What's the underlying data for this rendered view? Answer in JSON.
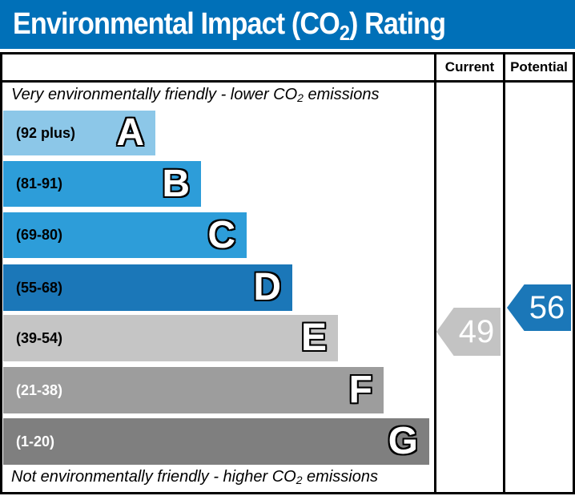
{
  "title": {
    "prefix": "Environmental Impact (CO",
    "subscript": "2",
    "suffix": ") Rating"
  },
  "header": {
    "current_label": "Current",
    "potential_label": "Potential"
  },
  "notes": {
    "top": {
      "prefix": "Very environmentally friendly - lower CO",
      "subscript": "2",
      "suffix": " emissions"
    },
    "bottom": {
      "prefix": "Not environmentally friendly - higher CO",
      "subscript": "2",
      "suffix": " emissions"
    }
  },
  "chart_data": {
    "type": "bar",
    "title": "Environmental Impact (CO2) Rating",
    "columns": [
      "Current",
      "Potential"
    ],
    "bands": [
      {
        "letter": "A",
        "range": "(92 plus)",
        "min": 92,
        "max": 100,
        "color": "#8cc7e8"
      },
      {
        "letter": "B",
        "range": "(81-91)",
        "min": 81,
        "max": 91,
        "color": "#2d9dd9"
      },
      {
        "letter": "C",
        "range": "(69-80)",
        "min": 69,
        "max": 80,
        "color": "#2d9dd9"
      },
      {
        "letter": "D",
        "range": "(55-68)",
        "min": 55,
        "max": 68,
        "color": "#1b77b8"
      },
      {
        "letter": "E",
        "range": "(39-54)",
        "min": 39,
        "max": 54,
        "color": "#c5c5c5"
      },
      {
        "letter": "F",
        "range": "(21-38)",
        "min": 21,
        "max": 38,
        "color": "#9d9d9d"
      },
      {
        "letter": "G",
        "range": "(1-20)",
        "min": 1,
        "max": 20,
        "color": "#7f7f7f"
      }
    ],
    "current": {
      "value": 49,
      "band": "E",
      "arrow_color": "#c3c3c3"
    },
    "potential": {
      "value": 56,
      "band": "D",
      "arrow_color": "#1b77b8"
    },
    "annotations": {
      "top": "Very environmentally friendly - lower CO2 emissions",
      "bottom": "Not environmentally friendly - higher CO2 emissions"
    }
  },
  "colors": {
    "title_bar": "#0070b8",
    "title_text": "#ffffff",
    "border": "#000000",
    "background": "#ffffff"
  }
}
